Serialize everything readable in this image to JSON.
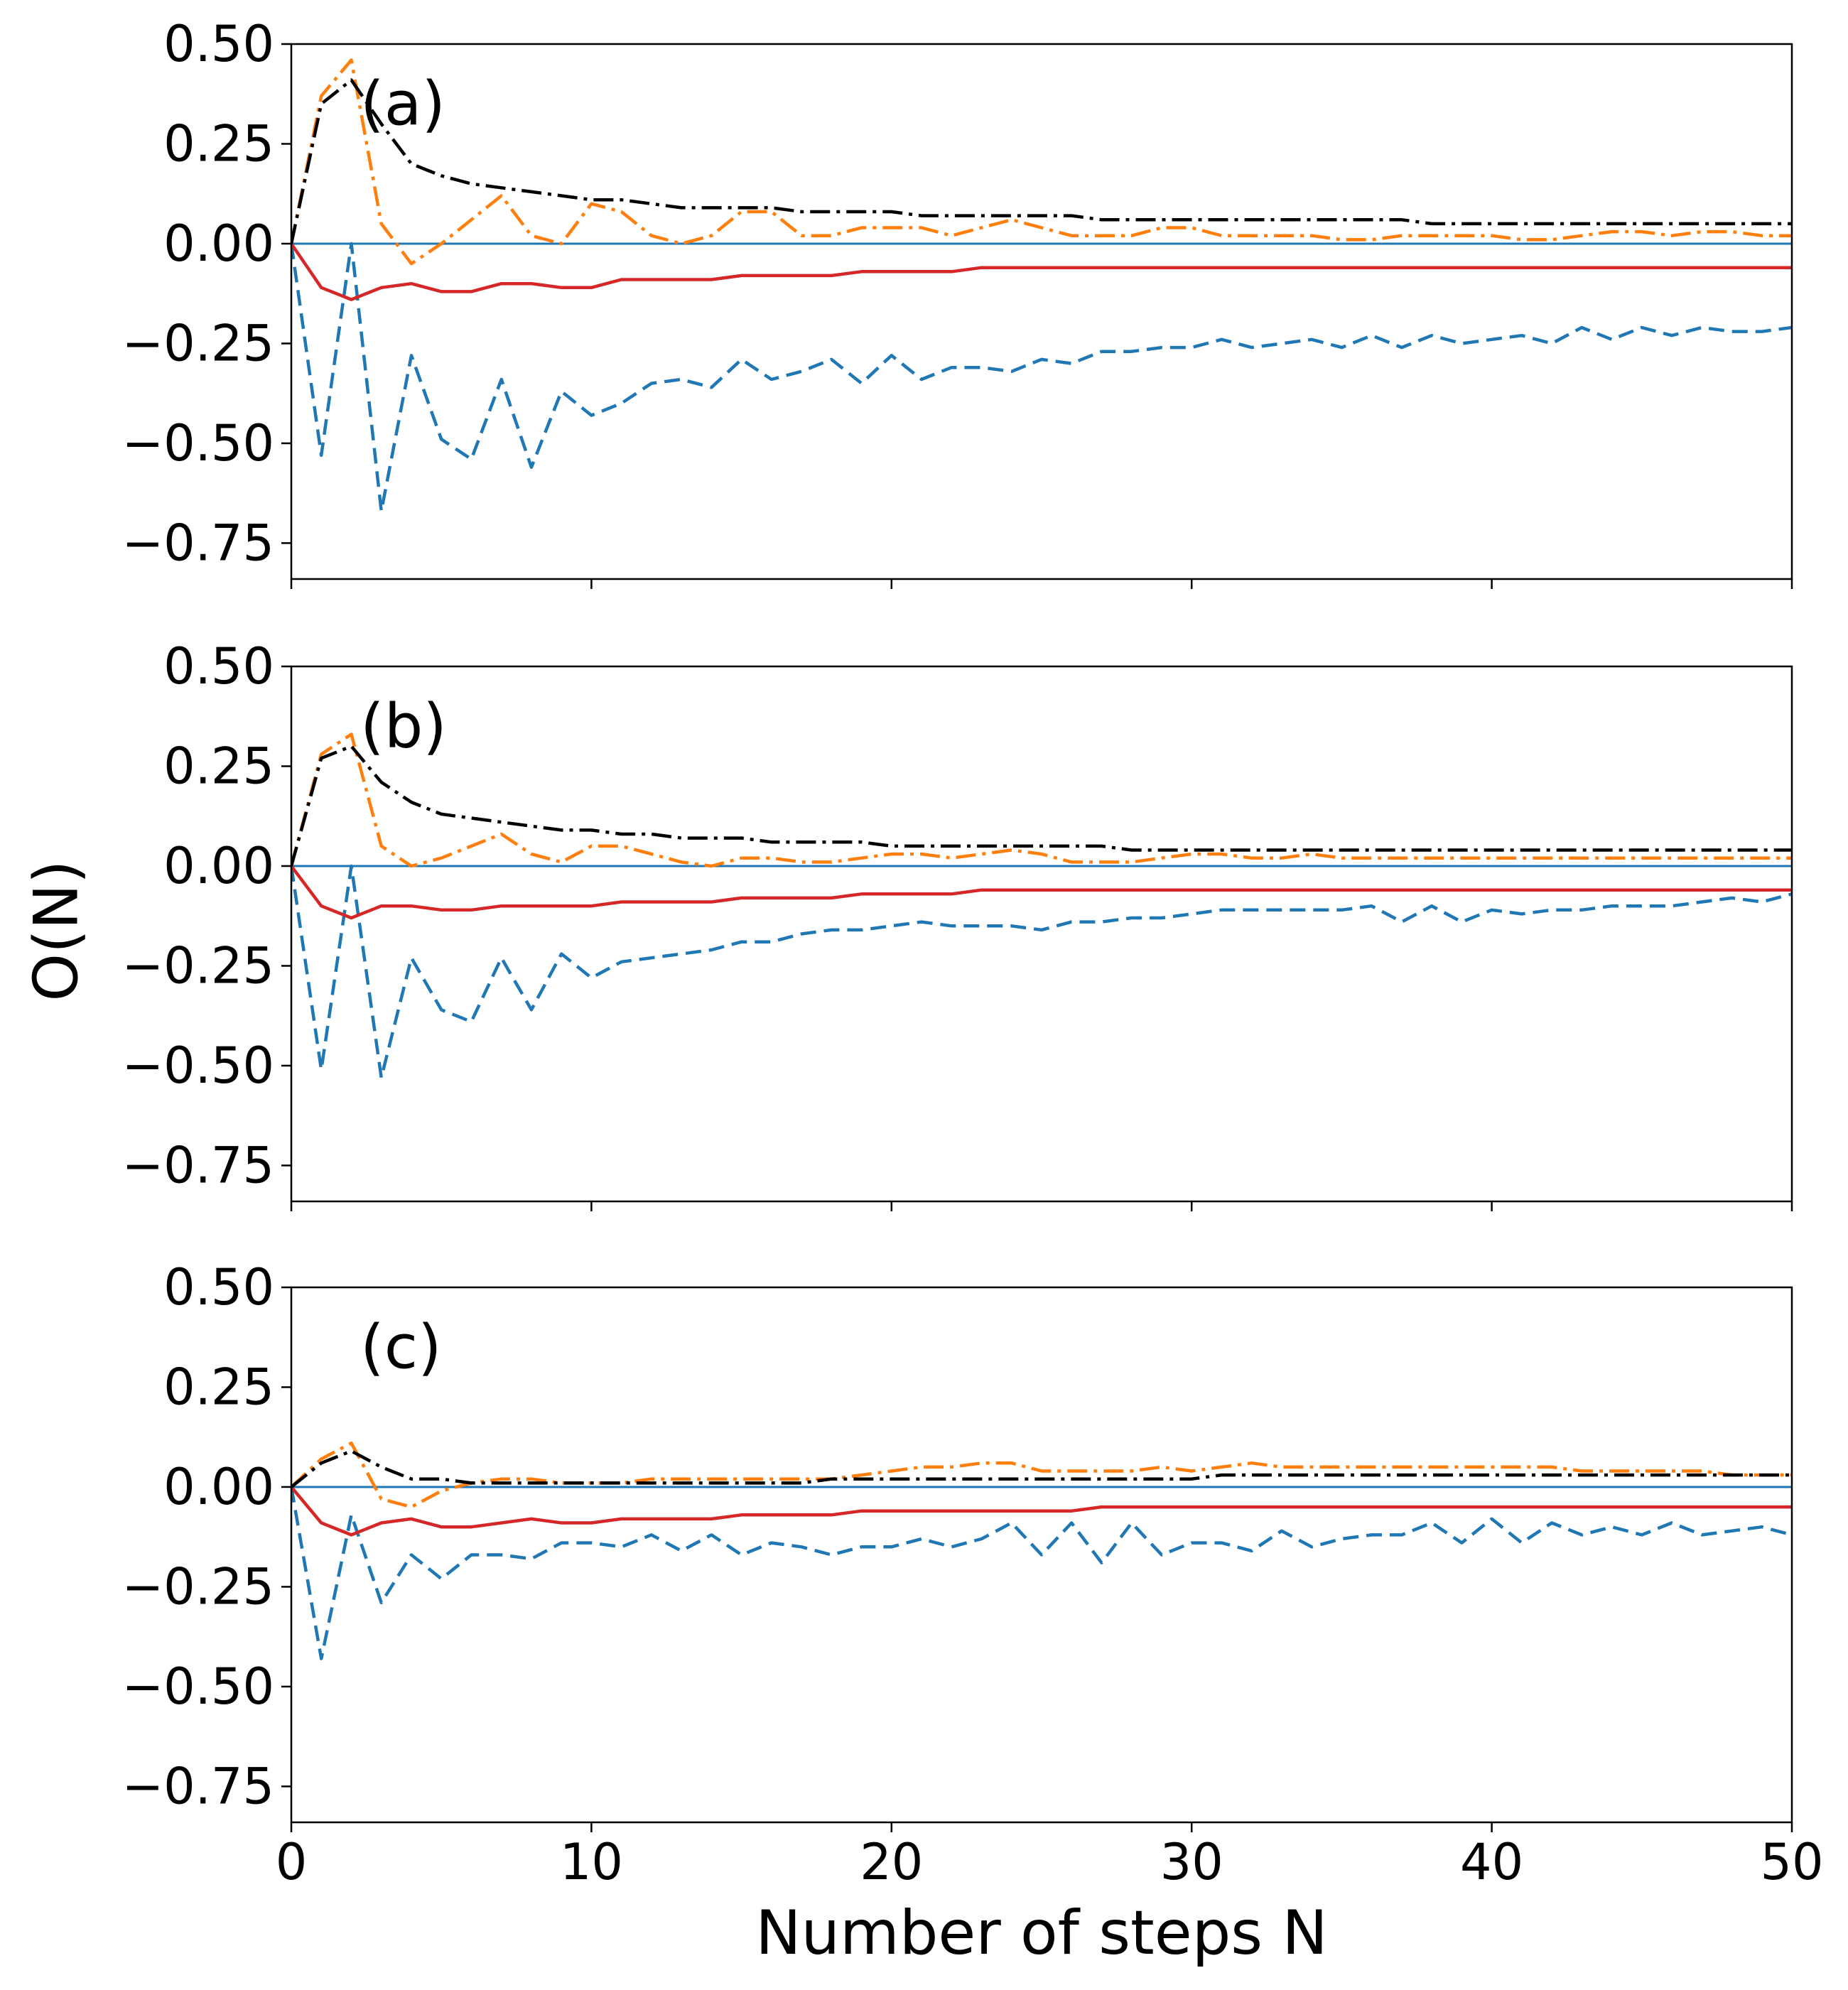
{
  "chart_data": {
    "type": "line",
    "ylabel": "O(N)",
    "xlabel": "Number of steps N",
    "xlim": [
      0,
      50
    ],
    "xticks": [
      0,
      10,
      20,
      30,
      40,
      50
    ],
    "xtick_labels": [
      "0",
      "10",
      "20",
      "30",
      "40",
      "50"
    ],
    "ylim": [
      -0.84,
      0.5
    ],
    "yticks": [
      0.5,
      0.25,
      0.0,
      -0.25,
      -0.5,
      -0.75
    ],
    "ytick_labels": [
      "0.50",
      "0.25",
      "0.00",
      "−0.25",
      "−0.50",
      "−0.75"
    ],
    "colors": {
      "blue": "#1f77b4",
      "orange": "#ff7f0e",
      "red": "#d62728",
      "black": "#000000"
    },
    "panels": [
      {
        "label": "(a)",
        "series": [
          {
            "name": "zero-line",
            "color": "blue",
            "style": "solid",
            "values": [
              0,
              0
            ]
          },
          {
            "name": "blue-dashed",
            "color": "blue",
            "style": "dashed",
            "values": [
              0,
              -0.53,
              0,
              -0.67,
              -0.28,
              -0.49,
              -0.54,
              -0.34,
              -0.56,
              -0.37,
              -0.43,
              -0.4,
              -0.35,
              -0.34,
              -0.36,
              -0.29,
              -0.34,
              -0.32,
              -0.29,
              -0.35,
              -0.28,
              -0.34,
              -0.31,
              -0.31,
              -0.32,
              -0.29,
              -0.3,
              -0.27,
              -0.27,
              -0.26,
              -0.26,
              -0.24,
              -0.26,
              -0.25,
              -0.24,
              -0.26,
              -0.23,
              -0.26,
              -0.23,
              -0.25,
              -0.24,
              -0.23,
              -0.25,
              -0.21,
              -0.24,
              -0.21,
              -0.23,
              -0.21,
              -0.22,
              -0.22,
              -0.21
            ]
          },
          {
            "name": "red-solid",
            "color": "red",
            "style": "solid",
            "values": [
              0,
              -0.11,
              -0.14,
              -0.11,
              -0.1,
              -0.12,
              -0.12,
              -0.1,
              -0.1,
              -0.11,
              -0.11,
              -0.09,
              -0.09,
              -0.09,
              -0.09,
              -0.08,
              -0.08,
              -0.08,
              -0.08,
              -0.07,
              -0.07,
              -0.07,
              -0.07,
              -0.06,
              -0.06,
              -0.06,
              -0.06,
              -0.06,
              -0.06,
              -0.06,
              -0.06,
              -0.06,
              -0.06,
              -0.06,
              -0.06,
              -0.06,
              -0.06,
              -0.06,
              -0.06,
              -0.06,
              -0.06,
              -0.06,
              -0.06,
              -0.06,
              -0.06,
              -0.06,
              -0.06,
              -0.06,
              -0.06,
              -0.06,
              -0.06
            ]
          },
          {
            "name": "orange-dashdot",
            "color": "orange",
            "style": "dashdot",
            "values": [
              0,
              0.37,
              0.46,
              0.05,
              -0.05,
              0.0,
              0.06,
              0.12,
              0.02,
              0.0,
              0.1,
              0.08,
              0.02,
              0.0,
              0.02,
              0.08,
              0.08,
              0.02,
              0.02,
              0.04,
              0.04,
              0.04,
              0.02,
              0.04,
              0.06,
              0.04,
              0.02,
              0.02,
              0.02,
              0.04,
              0.04,
              0.02,
              0.02,
              0.02,
              0.02,
              0.01,
              0.01,
              0.02,
              0.02,
              0.02,
              0.02,
              0.01,
              0.01,
              0.02,
              0.03,
              0.03,
              0.02,
              0.03,
              0.03,
              0.02,
              0.02
            ]
          },
          {
            "name": "black-dashdot",
            "color": "black",
            "style": "dashdot",
            "values": [
              0,
              0.35,
              0.41,
              0.3,
              0.2,
              0.17,
              0.15,
              0.14,
              0.13,
              0.12,
              0.11,
              0.11,
              0.1,
              0.09,
              0.09,
              0.09,
              0.09,
              0.08,
              0.08,
              0.08,
              0.08,
              0.07,
              0.07,
              0.07,
              0.07,
              0.07,
              0.07,
              0.06,
              0.06,
              0.06,
              0.06,
              0.06,
              0.06,
              0.06,
              0.06,
              0.06,
              0.06,
              0.06,
              0.05,
              0.05,
              0.05,
              0.05,
              0.05,
              0.05,
              0.05,
              0.05,
              0.05,
              0.05,
              0.05,
              0.05,
              0.05
            ]
          }
        ]
      },
      {
        "label": "(b)",
        "series": [
          {
            "name": "zero-line",
            "color": "blue",
            "style": "solid",
            "values": [
              0,
              0
            ]
          },
          {
            "name": "blue-dashed",
            "color": "blue",
            "style": "dashed",
            "values": [
              0,
              -0.51,
              0,
              -0.53,
              -0.23,
              -0.36,
              -0.39,
              -0.23,
              -0.36,
              -0.22,
              -0.28,
              -0.24,
              -0.23,
              -0.22,
              -0.21,
              -0.19,
              -0.19,
              -0.17,
              -0.16,
              -0.16,
              -0.15,
              -0.14,
              -0.15,
              -0.15,
              -0.15,
              -0.16,
              -0.14,
              -0.14,
              -0.13,
              -0.13,
              -0.12,
              -0.11,
              -0.11,
              -0.11,
              -0.11,
              -0.11,
              -0.1,
              -0.14,
              -0.1,
              -0.14,
              -0.11,
              -0.12,
              -0.11,
              -0.11,
              -0.1,
              -0.1,
              -0.1,
              -0.09,
              -0.08,
              -0.09,
              -0.07
            ]
          },
          {
            "name": "red-solid",
            "color": "red",
            "style": "solid",
            "values": [
              0,
              -0.1,
              -0.13,
              -0.1,
              -0.1,
              -0.11,
              -0.11,
              -0.1,
              -0.1,
              -0.1,
              -0.1,
              -0.09,
              -0.09,
              -0.09,
              -0.09,
              -0.08,
              -0.08,
              -0.08,
              -0.08,
              -0.07,
              -0.07,
              -0.07,
              -0.07,
              -0.06,
              -0.06,
              -0.06,
              -0.06,
              -0.06,
              -0.06,
              -0.06,
              -0.06,
              -0.06,
              -0.06,
              -0.06,
              -0.06,
              -0.06,
              -0.06,
              -0.06,
              -0.06,
              -0.06,
              -0.06,
              -0.06,
              -0.06,
              -0.06,
              -0.06,
              -0.06,
              -0.06,
              -0.06,
              -0.06,
              -0.06,
              -0.06
            ]
          },
          {
            "name": "orange-dashdot",
            "color": "orange",
            "style": "dashdot",
            "values": [
              0,
              0.28,
              0.33,
              0.05,
              0.0,
              0.02,
              0.05,
              0.08,
              0.03,
              0.01,
              0.05,
              0.05,
              0.03,
              0.01,
              0.0,
              0.02,
              0.02,
              0.01,
              0.01,
              0.02,
              0.03,
              0.03,
              0.02,
              0.03,
              0.04,
              0.03,
              0.01,
              0.01,
              0.01,
              0.02,
              0.03,
              0.03,
              0.02,
              0.02,
              0.03,
              0.02,
              0.02,
              0.02,
              0.02,
              0.02,
              0.02,
              0.02,
              0.02,
              0.02,
              0.02,
              0.02,
              0.02,
              0.02,
              0.02,
              0.02,
              0.02
            ]
          },
          {
            "name": "black-dashdot",
            "color": "black",
            "style": "dashdot",
            "values": [
              0,
              0.27,
              0.3,
              0.21,
              0.16,
              0.13,
              0.12,
              0.11,
              0.1,
              0.09,
              0.09,
              0.08,
              0.08,
              0.07,
              0.07,
              0.07,
              0.06,
              0.06,
              0.06,
              0.06,
              0.05,
              0.05,
              0.05,
              0.05,
              0.05,
              0.05,
              0.05,
              0.05,
              0.04,
              0.04,
              0.04,
              0.04,
              0.04,
              0.04,
              0.04,
              0.04,
              0.04,
              0.04,
              0.04,
              0.04,
              0.04,
              0.04,
              0.04,
              0.04,
              0.04,
              0.04,
              0.04,
              0.04,
              0.04,
              0.04,
              0.04
            ]
          }
        ]
      },
      {
        "label": "(c)",
        "series": [
          {
            "name": "zero-line",
            "color": "blue",
            "style": "solid",
            "values": [
              0,
              0
            ]
          },
          {
            "name": "blue-dashed",
            "color": "blue",
            "style": "dashed",
            "values": [
              0,
              -0.43,
              -0.07,
              -0.29,
              -0.17,
              -0.23,
              -0.17,
              -0.17,
              -0.18,
              -0.14,
              -0.14,
              -0.15,
              -0.12,
              -0.16,
              -0.12,
              -0.17,
              -0.14,
              -0.15,
              -0.17,
              -0.15,
              -0.15,
              -0.13,
              -0.15,
              -0.13,
              -0.09,
              -0.17,
              -0.09,
              -0.19,
              -0.09,
              -0.17,
              -0.14,
              -0.14,
              -0.16,
              -0.11,
              -0.15,
              -0.13,
              -0.12,
              -0.12,
              -0.09,
              -0.14,
              -0.08,
              -0.14,
              -0.09,
              -0.12,
              -0.1,
              -0.12,
              -0.09,
              -0.12,
              -0.11,
              -0.1,
              -0.12
            ]
          },
          {
            "name": "red-solid",
            "color": "red",
            "style": "solid",
            "values": [
              0,
              -0.09,
              -0.12,
              -0.09,
              -0.08,
              -0.1,
              -0.1,
              -0.09,
              -0.08,
              -0.09,
              -0.09,
              -0.08,
              -0.08,
              -0.08,
              -0.08,
              -0.07,
              -0.07,
              -0.07,
              -0.07,
              -0.06,
              -0.06,
              -0.06,
              -0.06,
              -0.06,
              -0.06,
              -0.06,
              -0.06,
              -0.05,
              -0.05,
              -0.05,
              -0.05,
              -0.05,
              -0.05,
              -0.05,
              -0.05,
              -0.05,
              -0.05,
              -0.05,
              -0.05,
              -0.05,
              -0.05,
              -0.05,
              -0.05,
              -0.05,
              -0.05,
              -0.05,
              -0.05,
              -0.05,
              -0.05,
              -0.05,
              -0.05
            ]
          },
          {
            "name": "orange-dashdot",
            "color": "orange",
            "style": "dashdot",
            "values": [
              0,
              0.07,
              0.11,
              -0.03,
              -0.05,
              -0.01,
              0.01,
              0.02,
              0.02,
              0.01,
              0.01,
              0.01,
              0.02,
              0.02,
              0.02,
              0.02,
              0.02,
              0.02,
              0.02,
              0.03,
              0.04,
              0.05,
              0.05,
              0.06,
              0.06,
              0.04,
              0.04,
              0.04,
              0.04,
              0.05,
              0.04,
              0.05,
              0.06,
              0.05,
              0.05,
              0.05,
              0.05,
              0.05,
              0.05,
              0.05,
              0.05,
              0.05,
              0.05,
              0.04,
              0.04,
              0.04,
              0.04,
              0.04,
              0.03,
              0.03,
              0.03
            ]
          },
          {
            "name": "black-dashdot",
            "color": "black",
            "style": "dashdot",
            "values": [
              0,
              0.06,
              0.09,
              0.05,
              0.02,
              0.02,
              0.01,
              0.01,
              0.01,
              0.01,
              0.01,
              0.01,
              0.01,
              0.01,
              0.01,
              0.01,
              0.01,
              0.01,
              0.02,
              0.02,
              0.02,
              0.02,
              0.02,
              0.02,
              0.02,
              0.02,
              0.02,
              0.02,
              0.02,
              0.02,
              0.02,
              0.03,
              0.03,
              0.03,
              0.03,
              0.03,
              0.03,
              0.03,
              0.03,
              0.03,
              0.03,
              0.03,
              0.03,
              0.03,
              0.03,
              0.03,
              0.03,
              0.03,
              0.03,
              0.03,
              0.03
            ]
          }
        ]
      }
    ]
  }
}
